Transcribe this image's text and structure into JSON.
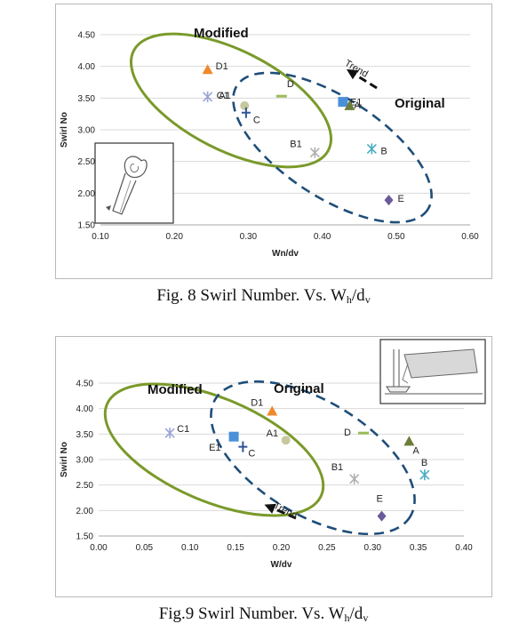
{
  "chart_data": [
    {
      "type": "scatter",
      "figure_caption_main": "Fig. 8  Swirl Number. Vs. W",
      "figure_caption_sub1": "h",
      "figure_caption_mid": "/d",
      "figure_caption_sub2": "v",
      "xlabel": "Wn/dv",
      "ylabel": "Swirl No",
      "xlim": [
        0.1,
        0.6
      ],
      "ylim": [
        1.5,
        4.5
      ],
      "x_ticks": [
        "0.10",
        "0.20",
        "0.30",
        "0.40",
        "0.50",
        "0.60"
      ],
      "y_ticks": [
        "1.50",
        "2.00",
        "2.50",
        "3.00",
        "3.50",
        "4.00",
        "4.50"
      ],
      "grid": "horizontal",
      "annotations": {
        "modified": "Modified",
        "original": "Original",
        "trend": "Trend"
      },
      "points": [
        {
          "label": "D1",
          "x": 0.245,
          "y": 3.95,
          "marker": "triangle",
          "color": "#f0882c"
        },
        {
          "label": "C1",
          "x": 0.245,
          "y": 3.52,
          "marker": "x",
          "color": "#9ba3d6"
        },
        {
          "label": "A1",
          "x": 0.295,
          "y": 3.38,
          "marker": "circle",
          "color": "#c8c8a0"
        },
        {
          "label": "C",
          "x": 0.297,
          "y": 3.27,
          "marker": "plus",
          "color": "#2f5597"
        },
        {
          "label": "D",
          "x": 0.345,
          "y": 3.53,
          "marker": "dash",
          "color": "#9bbb59"
        },
        {
          "label": "E1",
          "x": 0.428,
          "y": 3.44,
          "marker": "square",
          "color": "#4a90d9"
        },
        {
          "label": "A",
          "x": 0.437,
          "y": 3.38,
          "marker": "triangle",
          "color": "#6b7d3a"
        },
        {
          "label": "B1",
          "x": 0.39,
          "y": 2.64,
          "marker": "x",
          "color": "#b0b0b0"
        },
        {
          "label": "B",
          "x": 0.467,
          "y": 2.7,
          "marker": "x",
          "color": "#4bacc6"
        },
        {
          "label": "E",
          "x": 0.49,
          "y": 1.89,
          "marker": "diamond",
          "color": "#6a5a9a"
        }
      ],
      "ellipses": [
        {
          "name": "Modified",
          "style": "solid",
          "color": "#7a9a2a"
        },
        {
          "name": "Original",
          "style": "dashed",
          "color": "#1f4e79"
        }
      ]
    },
    {
      "type": "scatter",
      "figure_caption_main": "Fig.9 Swirl Number. Vs. W",
      "figure_caption_sub1": "h",
      "figure_caption_mid": "/d",
      "figure_caption_sub2": "v",
      "xlabel": "W/dv",
      "ylabel": "Swirl No",
      "xlim": [
        0.0,
        0.4
      ],
      "ylim": [
        1.5,
        4.5
      ],
      "x_ticks": [
        "0.00",
        "0.05",
        "0.10",
        "0.15",
        "0.20",
        "0.25",
        "0.30",
        "0.35",
        "0.40"
      ],
      "y_ticks": [
        "1.50",
        "2.00",
        "2.50",
        "3.00",
        "3.50",
        "4.00",
        "4.50"
      ],
      "grid": "horizontal",
      "annotations": {
        "modified": "Modified",
        "original": "Original",
        "trend": "Trend"
      },
      "points": [
        {
          "label": "C1",
          "x": 0.078,
          "y": 3.52,
          "marker": "x",
          "color": "#9ba3d6"
        },
        {
          "label": "D1",
          "x": 0.19,
          "y": 3.95,
          "marker": "triangle",
          "color": "#f0882c"
        },
        {
          "label": "A1",
          "x": 0.205,
          "y": 3.38,
          "marker": "circle",
          "color": "#c8c8a0"
        },
        {
          "label": "E1",
          "x": 0.148,
          "y": 3.45,
          "marker": "square",
          "color": "#4a90d9"
        },
        {
          "label": "C",
          "x": 0.158,
          "y": 3.25,
          "marker": "plus",
          "color": "#2f5597"
        },
        {
          "label": "D",
          "x": 0.29,
          "y": 3.52,
          "marker": "dash",
          "color": "#9bbb59"
        },
        {
          "label": "A",
          "x": 0.34,
          "y": 3.36,
          "marker": "triangle",
          "color": "#6b7d3a"
        },
        {
          "label": "B1",
          "x": 0.28,
          "y": 2.62,
          "marker": "x",
          "color": "#b0b0b0"
        },
        {
          "label": "B",
          "x": 0.357,
          "y": 2.7,
          "marker": "x",
          "color": "#4bacc6"
        },
        {
          "label": "E",
          "x": 0.31,
          "y": 1.89,
          "marker": "diamond",
          "color": "#6a5a9a"
        }
      ],
      "ellipses": [
        {
          "name": "Modified",
          "style": "solid",
          "color": "#7a9a2a"
        },
        {
          "name": "Original",
          "style": "dashed",
          "color": "#1f4e79"
        }
      ]
    }
  ]
}
